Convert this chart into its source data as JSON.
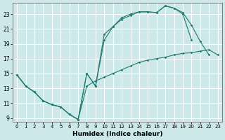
{
  "xlabel": "Humidex (Indice chaleur)",
  "bg_color": "#cce8e8",
  "grid_color": "#ffffff",
  "line_color": "#1f7a6e",
  "xlim_min": -0.5,
  "xlim_max": 23.5,
  "ylim_min": 8.5,
  "ylim_max": 24.5,
  "xticks": [
    0,
    1,
    2,
    3,
    4,
    5,
    6,
    7,
    8,
    9,
    10,
    11,
    12,
    13,
    14,
    15,
    16,
    17,
    18,
    19,
    20,
    21,
    22,
    23
  ],
  "yticks": [
    9,
    11,
    13,
    15,
    17,
    19,
    21,
    23
  ],
  "line1": {
    "x": [
      0,
      1,
      2,
      3,
      4,
      5,
      6,
      7,
      8,
      9,
      10,
      11,
      12,
      13,
      14,
      15,
      16,
      17,
      18,
      19,
      20,
      21,
      22,
      23
    ],
    "y": [
      14.8,
      13.3,
      12.5,
      11.3,
      10.8,
      10.5,
      9.5,
      8.8,
      13.3,
      14.0,
      14.5,
      15.0,
      15.5,
      16.0,
      16.5,
      16.8,
      17.0,
      17.2,
      17.5,
      17.7,
      17.8,
      18.0,
      18.2,
      17.5
    ]
  },
  "line2": {
    "x": [
      0,
      1,
      2,
      3,
      4,
      5,
      6,
      7,
      8,
      9,
      10,
      11,
      12,
      13,
      14,
      15,
      16,
      17,
      18,
      19,
      20,
      21,
      22
    ],
    "y": [
      14.8,
      13.3,
      12.5,
      11.3,
      10.8,
      10.5,
      9.5,
      8.8,
      15.0,
      13.3,
      20.3,
      21.3,
      22.5,
      23.0,
      23.3,
      23.3,
      23.2,
      24.1,
      23.8,
      23.2,
      21.5,
      19.3,
      17.5
    ]
  },
  "line3": {
    "x": [
      0,
      1,
      2,
      3,
      4,
      5,
      6,
      7,
      8,
      9,
      10,
      11,
      12,
      13,
      14,
      15,
      16,
      17,
      18,
      19,
      20,
      21,
      22
    ],
    "y": [
      14.8,
      13.3,
      12.5,
      11.3,
      10.8,
      10.5,
      9.5,
      8.8,
      15.0,
      13.3,
      19.5,
      21.3,
      22.3,
      22.8,
      23.3,
      23.3,
      23.2,
      24.1,
      23.8,
      23.0,
      19.5,
      null,
      null
    ]
  }
}
